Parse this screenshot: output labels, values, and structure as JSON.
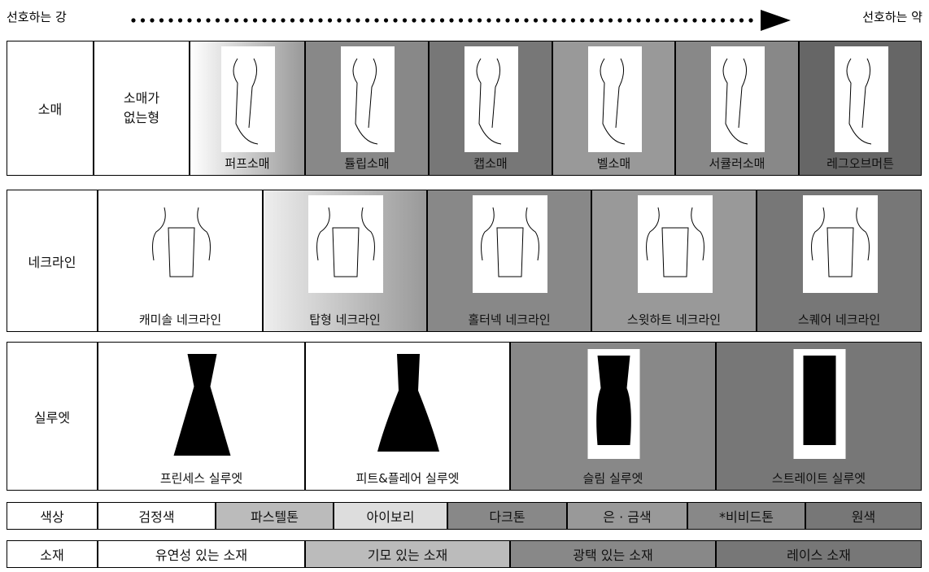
{
  "header": {
    "left": "선호하는 강",
    "right": "선호하는 약"
  },
  "rows": [
    {
      "label": "소매",
      "items": [
        "소매가 없는형",
        "퍼프소매",
        "튤립소매",
        "캡소매",
        "벨소매",
        "서큘러소매",
        "레그오브머튼"
      ]
    },
    {
      "label": "네크라인",
      "items": [
        "캐미솔 네크라인",
        "탑형 네크라인",
        "홀터넥 네크라인",
        "스윗하트 네크라인",
        "스퀘어 네크라인"
      ]
    },
    {
      "label": "실루엣",
      "items": [
        "프린세스 실루엣",
        "피트&플레어 실루엣",
        "슬림 실루엣",
        "스트레이트 실루엣"
      ]
    },
    {
      "label": "색상",
      "items": [
        "검정색",
        "파스텔톤",
        "아이보리",
        "다크톤",
        "은 · 금색",
        "*비비드톤",
        "원색"
      ]
    },
    {
      "label": "소재",
      "items": [
        "유연성 있는 소재",
        "기모 있는 소재",
        "광택 있는 소재",
        "레이스 소재"
      ]
    }
  ]
}
